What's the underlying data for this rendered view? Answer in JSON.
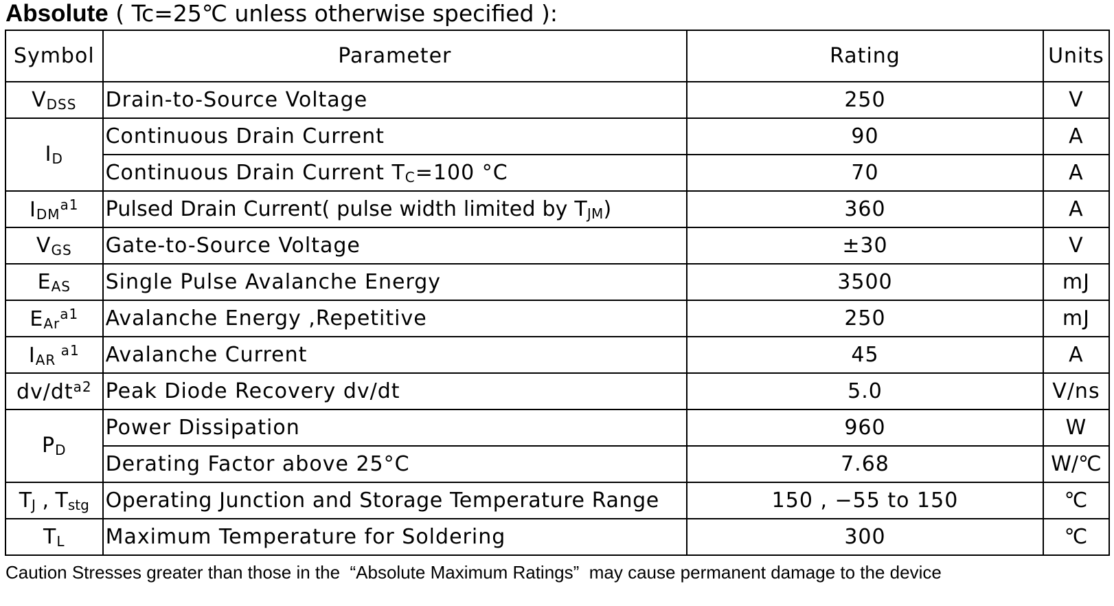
{
  "heading": {
    "bold": "Absolute",
    "rest": " ( Tc=25℃  unless otherwise specified ):"
  },
  "table": {
    "headers": {
      "symbol": "Symbol",
      "parameter": "Parameter",
      "rating": "Rating",
      "units": "Units"
    },
    "rows": [
      {
        "sym": {
          "base": "V",
          "sub": "DSS",
          "sup": ""
        },
        "param": "Drain-to-Source Voltage",
        "rating": "250",
        "unit": "V"
      },
      {
        "sym": {
          "base": "I",
          "sub": "D",
          "sup": ""
        },
        "param": "Continuous Drain Current",
        "rating": "90",
        "unit": "A"
      },
      {
        "param_a": "Continuous Drain Current T",
        "param_sub": "C",
        "param_b": "=100 °C",
        "rating": "70",
        "unit": "A"
      },
      {
        "sym": {
          "base": "I",
          "sub": "DM",
          "sup": "a1"
        },
        "param_a": "Pulsed Drain Current( pulse width limited by T",
        "param_sub": "JM",
        "param_b": ")",
        "rating": "360",
        "unit": "A"
      },
      {
        "sym": {
          "base": "V",
          "sub": "GS",
          "sup": ""
        },
        "param": "Gate-to-Source Voltage",
        "rating": "±30",
        "unit": "V"
      },
      {
        "sym": {
          "base": "E",
          "sub": "AS",
          "sup": ""
        },
        "param": "Single Pulse Avalanche Energy",
        "rating": "3500",
        "unit": "mJ"
      },
      {
        "sym": {
          "base": "E",
          "sub": "Ar",
          "sup": "a1"
        },
        "param": "Avalanche Energy ,Repetitive",
        "rating": "250",
        "unit": "mJ"
      },
      {
        "sym": {
          "base": "I",
          "sub": "AR",
          "sup": " a1"
        },
        "param": "Avalanche Current",
        "rating": "45",
        "unit": "A"
      },
      {
        "sym": {
          "base": "dv/dt",
          "sub": "",
          "sup": "a2"
        },
        "param": "Peak Diode Recovery dv/dt",
        "rating": "5.0",
        "unit": "V/ns"
      },
      {
        "sym": {
          "base": "P",
          "sub": "D",
          "sup": ""
        },
        "param": "Power Dissipation",
        "rating": "960",
        "unit": "W"
      },
      {
        "param": "Derating Factor above 25°C",
        "rating": "7.68",
        "unit": "W/℃"
      },
      {
        "sym": {
          "base": "T",
          "sub": "J",
          "mid": " , T",
          "sub2": "stg"
        },
        "param": "Operating Junction and Storage Temperature Range",
        "rating": "150 , −55 to 150",
        "unit": "℃"
      },
      {
        "sym": {
          "base": "T",
          "sub": "L",
          "sup": ""
        },
        "param": "Maximum Temperature for Soldering",
        "rating": "300",
        "unit": "℃"
      }
    ]
  },
  "caption": "Caution Stresses greater than those in the  “Absolute Maximum Ratings”  may cause permanent damage to the device"
}
